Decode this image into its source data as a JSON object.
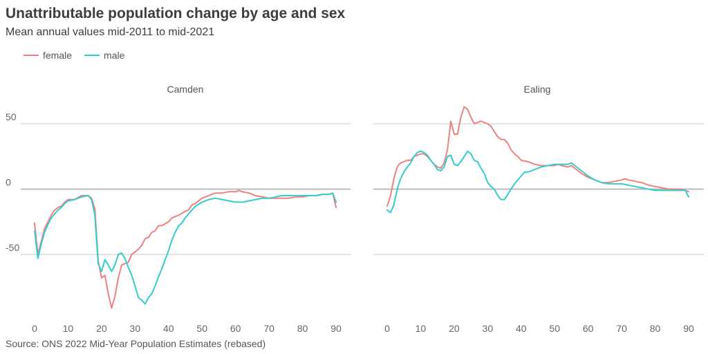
{
  "title": "Unattributable population change by age and sex",
  "subtitle": "Mean annual values mid-2011 to mid-2021",
  "source": "Source: ONS 2022 Mid-Year Population Estimates (rebased)",
  "legend": [
    {
      "name": "female",
      "color": "#f08080"
    },
    {
      "name": "male",
      "color": "#33cccc"
    }
  ],
  "chart_data": [
    {
      "type": "line",
      "title": "Camden",
      "x_ticks": [
        0,
        10,
        20,
        30,
        40,
        50,
        60,
        70,
        80,
        90
      ],
      "y_ticks": [
        50,
        0,
        -50
      ],
      "y_tick_labels": [
        "50",
        "0",
        "-50"
      ],
      "xlim": [
        0,
        90
      ],
      "ylim": [
        -95,
        62
      ],
      "grid": "horizontal",
      "series": [
        {
          "name": "female",
          "color": "#f08080",
          "points": [
            [
              0,
              -26
            ],
            [
              1,
              -50
            ],
            [
              2,
              -40
            ],
            [
              3,
              -30
            ],
            [
              4,
              -25
            ],
            [
              5,
              -20
            ],
            [
              6,
              -16
            ],
            [
              7,
              -14
            ],
            [
              8,
              -13
            ],
            [
              9,
              -10
            ],
            [
              10,
              -8
            ],
            [
              12,
              -8
            ],
            [
              14,
              -5
            ],
            [
              16,
              -5
            ],
            [
              17,
              -7
            ],
            [
              18,
              -15
            ],
            [
              19,
              -55
            ],
            [
              20,
              -68
            ],
            [
              21,
              -66
            ],
            [
              22,
              -80
            ],
            [
              23,
              -91
            ],
            [
              24,
              -82
            ],
            [
              25,
              -68
            ],
            [
              26,
              -58
            ],
            [
              28,
              -56
            ],
            [
              29,
              -50
            ],
            [
              31,
              -46
            ],
            [
              32,
              -43
            ],
            [
              33,
              -38
            ],
            [
              34,
              -37
            ],
            [
              35,
              -33
            ],
            [
              36,
              -32
            ],
            [
              37,
              -28
            ],
            [
              38,
              -28
            ],
            [
              40,
              -25
            ],
            [
              41,
              -22
            ],
            [
              43,
              -20
            ],
            [
              45,
              -17
            ],
            [
              46,
              -16
            ],
            [
              47,
              -12
            ],
            [
              48,
              -11
            ],
            [
              50,
              -7
            ],
            [
              52,
              -5
            ],
            [
              54,
              -3
            ],
            [
              56,
              -3
            ],
            [
              58,
              -2
            ],
            [
              60,
              -2
            ],
            [
              61,
              -1
            ],
            [
              62,
              -2
            ],
            [
              64,
              -3
            ],
            [
              66,
              -5
            ],
            [
              68,
              -6
            ],
            [
              70,
              -7
            ],
            [
              72,
              -7
            ],
            [
              74,
              -7
            ],
            [
              76,
              -7
            ],
            [
              78,
              -6
            ],
            [
              80,
              -6
            ],
            [
              82,
              -5
            ],
            [
              84,
              -5
            ],
            [
              86,
              -4
            ],
            [
              88,
              -4
            ],
            [
              89,
              -3
            ],
            [
              90,
              -14
            ]
          ]
        },
        {
          "name": "male",
          "color": "#33cccc",
          "points": [
            [
              0,
              -32
            ],
            [
              1,
              -53
            ],
            [
              2,
              -42
            ],
            [
              3,
              -33
            ],
            [
              4,
              -27
            ],
            [
              5,
              -22
            ],
            [
              6,
              -19
            ],
            [
              7,
              -16
            ],
            [
              8,
              -14
            ],
            [
              9,
              -11
            ],
            [
              10,
              -9
            ],
            [
              12,
              -8
            ],
            [
              14,
              -6
            ],
            [
              16,
              -5
            ],
            [
              17,
              -8
            ],
            [
              18,
              -20
            ],
            [
              19,
              -57
            ],
            [
              20,
              -63
            ],
            [
              21,
              -54
            ],
            [
              22,
              -58
            ],
            [
              23,
              -63
            ],
            [
              24,
              -58
            ],
            [
              25,
              -50
            ],
            [
              26,
              -49
            ],
            [
              27,
              -53
            ],
            [
              28,
              -60
            ],
            [
              29,
              -66
            ],
            [
              30,
              -74
            ],
            [
              31,
              -83
            ],
            [
              32,
              -85
            ],
            [
              33,
              -88
            ],
            [
              34,
              -83
            ],
            [
              35,
              -80
            ],
            [
              36,
              -74
            ],
            [
              37,
              -67
            ],
            [
              38,
              -61
            ],
            [
              39,
              -54
            ],
            [
              40,
              -47
            ],
            [
              41,
              -39
            ],
            [
              42,
              -33
            ],
            [
              43,
              -28
            ],
            [
              44,
              -26
            ],
            [
              45,
              -22
            ],
            [
              46,
              -19
            ],
            [
              47,
              -16
            ],
            [
              48,
              -13
            ],
            [
              50,
              -10
            ],
            [
              52,
              -8
            ],
            [
              54,
              -7
            ],
            [
              56,
              -8
            ],
            [
              58,
              -9
            ],
            [
              60,
              -10
            ],
            [
              62,
              -10
            ],
            [
              64,
              -9
            ],
            [
              66,
              -8
            ],
            [
              68,
              -7
            ],
            [
              70,
              -7
            ],
            [
              72,
              -6
            ],
            [
              74,
              -5
            ],
            [
              76,
              -5
            ],
            [
              78,
              -5
            ],
            [
              80,
              -5
            ],
            [
              82,
              -5
            ],
            [
              84,
              -5
            ],
            [
              86,
              -4
            ],
            [
              88,
              -4
            ],
            [
              89,
              -3
            ],
            [
              90,
              -10
            ]
          ]
        }
      ]
    },
    {
      "type": "line",
      "title": "Ealing",
      "x_ticks": [
        0,
        10,
        20,
        30,
        40,
        50,
        60,
        70,
        80,
        90
      ],
      "y_ticks": [
        50,
        0,
        -50
      ],
      "y_tick_labels": [
        "",
        "",
        ""
      ],
      "xlim": [
        0,
        90
      ],
      "ylim": [
        -95,
        62
      ],
      "grid": "horizontal",
      "series": [
        {
          "name": "female",
          "color": "#f08080",
          "points": [
            [
              0,
              -13
            ],
            [
              1,
              -5
            ],
            [
              2,
              8
            ],
            [
              3,
              17
            ],
            [
              4,
              20
            ],
            [
              5,
              21
            ],
            [
              6,
              22
            ],
            [
              7,
              22
            ],
            [
              8,
              25
            ],
            [
              9,
              26
            ],
            [
              10,
              27
            ],
            [
              11,
              27
            ],
            [
              12,
              25
            ],
            [
              13,
              22
            ],
            [
              14,
              19
            ],
            [
              15,
              17
            ],
            [
              16,
              16
            ],
            [
              17,
              20
            ],
            [
              18,
              30
            ],
            [
              19,
              52
            ],
            [
              20,
              42
            ],
            [
              21,
              42
            ],
            [
              22,
              55
            ],
            [
              23,
              63
            ],
            [
              24,
              61
            ],
            [
              25,
              55
            ],
            [
              26,
              50
            ],
            [
              28,
              52
            ],
            [
              30,
              50
            ],
            [
              31,
              48
            ],
            [
              32,
              44
            ],
            [
              33,
              40
            ],
            [
              34,
              38
            ],
            [
              35,
              38
            ],
            [
              36,
              35
            ],
            [
              37,
              30
            ],
            [
              38,
              27
            ],
            [
              39,
              25
            ],
            [
              40,
              22
            ],
            [
              42,
              21
            ],
            [
              44,
              19
            ],
            [
              46,
              18
            ],
            [
              48,
              18
            ],
            [
              50,
              18
            ],
            [
              51,
              19
            ],
            [
              52,
              18
            ],
            [
              54,
              17
            ],
            [
              55,
              18
            ],
            [
              56,
              16
            ],
            [
              58,
              12
            ],
            [
              60,
              9
            ],
            [
              62,
              7
            ],
            [
              64,
              5
            ],
            [
              66,
              5
            ],
            [
              68,
              6
            ],
            [
              70,
              7
            ],
            [
              71,
              8
            ],
            [
              72,
              7
            ],
            [
              74,
              6
            ],
            [
              76,
              5
            ],
            [
              78,
              3
            ],
            [
              80,
              2
            ],
            [
              82,
              1
            ],
            [
              84,
              0
            ],
            [
              86,
              0
            ],
            [
              88,
              0
            ],
            [
              89,
              -1
            ],
            [
              90,
              -2
            ]
          ]
        },
        {
          "name": "male",
          "color": "#33cccc",
          "points": [
            [
              0,
              -16
            ],
            [
              1,
              -18
            ],
            [
              2,
              -12
            ],
            [
              3,
              0
            ],
            [
              4,
              8
            ],
            [
              5,
              13
            ],
            [
              6,
              17
            ],
            [
              7,
              20
            ],
            [
              8,
              25
            ],
            [
              9,
              28
            ],
            [
              10,
              29
            ],
            [
              11,
              28
            ],
            [
              12,
              26
            ],
            [
              13,
              22
            ],
            [
              14,
              19
            ],
            [
              15,
              15
            ],
            [
              16,
              14
            ],
            [
              17,
              17
            ],
            [
              18,
              25
            ],
            [
              19,
              26
            ],
            [
              20,
              19
            ],
            [
              21,
              18
            ],
            [
              22,
              21
            ],
            [
              23,
              25
            ],
            [
              24,
              29
            ],
            [
              25,
              27
            ],
            [
              26,
              22
            ],
            [
              27,
              21
            ],
            [
              28,
              16
            ],
            [
              29,
              12
            ],
            [
              30,
              5
            ],
            [
              31,
              2
            ],
            [
              32,
              0
            ],
            [
              33,
              -5
            ],
            [
              34,
              -8
            ],
            [
              35,
              -8
            ],
            [
              36,
              -4
            ],
            [
              37,
              0
            ],
            [
              38,
              4
            ],
            [
              40,
              10
            ],
            [
              41,
              13
            ],
            [
              42,
              13
            ],
            [
              44,
              15
            ],
            [
              46,
              17
            ],
            [
              48,
              18
            ],
            [
              50,
              19
            ],
            [
              52,
              19
            ],
            [
              54,
              19
            ],
            [
              55,
              20
            ],
            [
              56,
              18
            ],
            [
              58,
              14
            ],
            [
              60,
              10
            ],
            [
              62,
              7
            ],
            [
              64,
              5
            ],
            [
              66,
              4
            ],
            [
              68,
              4
            ],
            [
              70,
              4
            ],
            [
              72,
              3
            ],
            [
              74,
              2
            ],
            [
              76,
              1
            ],
            [
              78,
              0
            ],
            [
              80,
              -1
            ],
            [
              82,
              -1
            ],
            [
              84,
              -1
            ],
            [
              86,
              -1
            ],
            [
              88,
              -1
            ],
            [
              89,
              -1
            ],
            [
              90,
              -6
            ]
          ]
        }
      ]
    }
  ]
}
